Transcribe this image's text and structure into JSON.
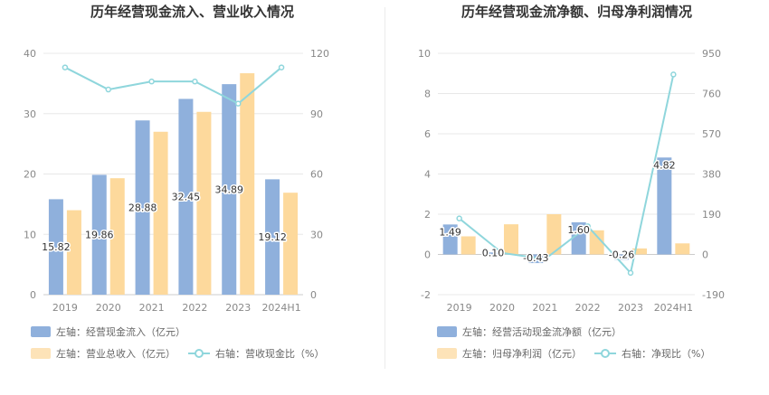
{
  "colors": {
    "bar_primary": "#8fb0dc",
    "bar_secondary": "#fdd99c",
    "line": "#8fd6dc",
    "grid": "#e8e8e8"
  },
  "chart_data": [
    {
      "type": "bar",
      "title": "历年经营现金流入、营业收入情况",
      "categories": [
        "2019",
        "2020",
        "2021",
        "2022",
        "2023",
        "2024H1"
      ],
      "ylim_left": [
        0,
        40
      ],
      "ylim_right": [
        0,
        120
      ],
      "y_ticks_left": [
        "0",
        "10",
        "20",
        "30",
        "40"
      ],
      "y_ticks_right": [
        "0",
        "30",
        "60",
        "90",
        "120"
      ],
      "series": [
        {
          "name": "左轴：经营现金流入（亿元）",
          "type": "bar",
          "axis": "left",
          "values": [
            15.82,
            19.86,
            28.88,
            32.45,
            34.89,
            19.12
          ],
          "labels": [
            "15.82",
            "19.86",
            "28.88",
            "32.45",
            "34.89",
            "19.12"
          ]
        },
        {
          "name": "左轴：营业总收入（亿元）",
          "type": "bar",
          "axis": "left",
          "values": [
            14.0,
            19.3,
            27.0,
            30.3,
            36.7,
            16.9
          ]
        },
        {
          "name": "右轴：营收现金比（%）",
          "type": "line",
          "axis": "right",
          "values": [
            113,
            102,
            106,
            106,
            95,
            113
          ]
        }
      ],
      "legend": "bottom",
      "grid": true
    },
    {
      "type": "bar",
      "title": "历年经营现金流净额、归母净利润情况",
      "categories": [
        "2019",
        "2020",
        "2021",
        "2022",
        "2023",
        "2024H1"
      ],
      "ylim_left": [
        -2,
        10
      ],
      "ylim_right": [
        -190,
        950
      ],
      "y_ticks_left": [
        "-2",
        "0",
        "2",
        "4",
        "6",
        "8",
        "10"
      ],
      "y_ticks_right": [
        "-190",
        "0",
        "190",
        "380",
        "570",
        "760",
        "950"
      ],
      "series": [
        {
          "name": "左轴：经营活动现金流净额（亿元）",
          "type": "bar",
          "axis": "left",
          "values": [
            1.49,
            0.1,
            -0.43,
            1.6,
            -0.26,
            4.82
          ],
          "labels": [
            "1.49",
            "0.10",
            "-0.43",
            "1.60",
            "-0.26",
            "4.82"
          ]
        },
        {
          "name": "左轴：归母净利润（亿元）",
          "type": "bar",
          "axis": "left",
          "values": [
            0.9,
            1.5,
            2.0,
            1.2,
            0.3,
            0.55
          ]
        },
        {
          "name": "右轴：净现比（%）",
          "type": "line",
          "axis": "right",
          "values": [
            170,
            7,
            -22,
            133,
            -87,
            850
          ]
        }
      ],
      "legend": "bottom",
      "grid": true
    }
  ]
}
